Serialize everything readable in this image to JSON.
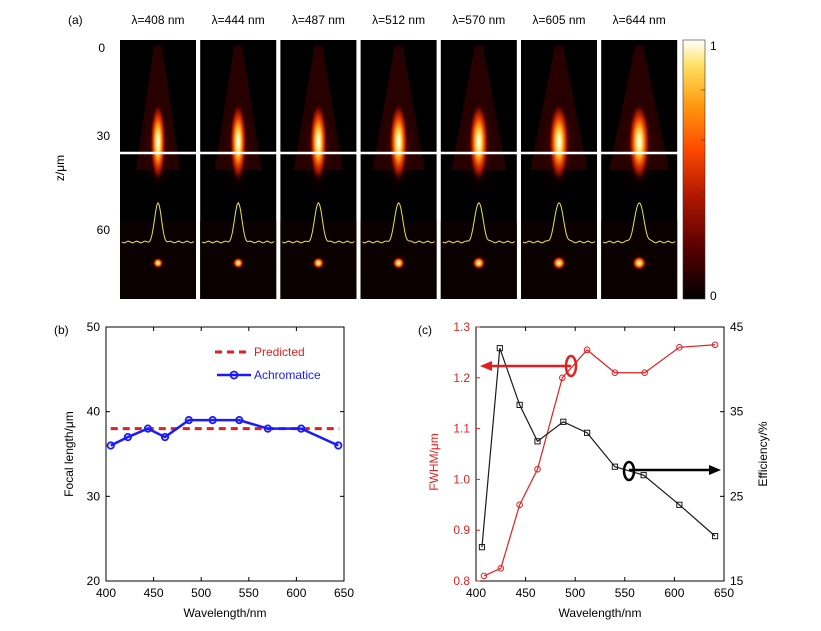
{
  "panel_a": {
    "label": "(a)",
    "wavelength_labels": [
      "λ=408 nm",
      "λ=444 nm",
      "λ=487 nm",
      "λ=512 nm",
      "λ=570 nm",
      "λ=605 nm",
      "λ=644 nm"
    ],
    "z_axis_label": "z/μm",
    "z_ticks": [
      "0",
      "30",
      "60"
    ],
    "colorbar_ticks": [
      "1",
      "0"
    ],
    "colormap": [
      "#000000",
      "#5a0000",
      "#b01800",
      "#ff4a00",
      "#ff9a10",
      "#ffe060",
      "#ffffff"
    ]
  },
  "chart_data": [
    {
      "type": "line",
      "panel_label": "(b)",
      "xlabel": "Wavelength/nm",
      "ylabel": "Focal length/μm",
      "xlim": [
        400,
        650
      ],
      "ylim": [
        20,
        50
      ],
      "xticks": [
        "400",
        "450",
        "500",
        "550",
        "600",
        "650"
      ],
      "yticks": [
        "20",
        "30",
        "40",
        "50"
      ],
      "legend_position": "top-right",
      "series": [
        {
          "name": "Predicted",
          "style": "dashed",
          "color": "#e02020",
          "x": [
            405,
            645
          ],
          "y": [
            38,
            38
          ]
        },
        {
          "name": "Achromatice",
          "style": "solid-circle",
          "color": "#1a1aff",
          "x": [
            405,
            423,
            444,
            462,
            487,
            512,
            540,
            570,
            605,
            644
          ],
          "y": [
            36,
            37,
            38,
            37,
            39,
            39,
            39,
            38,
            38,
            36
          ]
        }
      ]
    },
    {
      "type": "line",
      "panel_label": "(c)",
      "xlabel": "Wavelength/nm",
      "ylabel_left": "FWHM/μm",
      "ylabel_right": "Efficiency/%",
      "xlim": [
        400,
        650
      ],
      "ylim_left": [
        0.8,
        1.3
      ],
      "ylim_right": [
        15,
        45
      ],
      "xticks": [
        "400",
        "450",
        "500",
        "550",
        "600",
        "650"
      ],
      "yticks_left": [
        "0.8",
        "0.9",
        "1.0",
        "1.1",
        "1.2",
        "1.3"
      ],
      "yticks_right": [
        "15",
        "25",
        "35",
        "45"
      ],
      "series": [
        {
          "axis": "left",
          "color": "#e02020",
          "marker": "circle",
          "x": [
            408,
            425,
            444,
            462,
            487,
            512,
            540,
            570,
            605,
            641
          ],
          "y": [
            0.81,
            0.825,
            0.95,
            1.02,
            1.2,
            1.255,
            1.21,
            1.21,
            1.26,
            1.265
          ]
        },
        {
          "axis": "right",
          "color": "#1a1a1a",
          "marker": "square",
          "x": [
            406,
            424,
            444,
            462,
            488,
            512,
            540,
            569,
            605,
            641
          ],
          "y": [
            19,
            42.5,
            35.8,
            31.5,
            33.8,
            32.5,
            28.5,
            27.5,
            24,
            20.3
          ]
        }
      ]
    }
  ]
}
